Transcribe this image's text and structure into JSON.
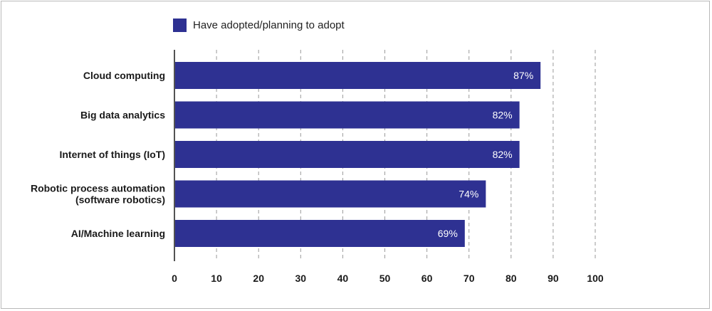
{
  "chart_data": {
    "type": "bar",
    "orientation": "horizontal",
    "categories": [
      "Cloud computing",
      "Big data analytics",
      "Internet of things (IoT)",
      "Robotic process automation\n(software robotics)",
      "AI/Machine learning"
    ],
    "series": [
      {
        "name": "Have adopted/planning to adopt",
        "values": [
          87,
          82,
          82,
          74,
          69
        ]
      }
    ],
    "data_labels": [
      "87%",
      "82%",
      "82%",
      "74%",
      "69%"
    ],
    "xlim": [
      0,
      100
    ],
    "xticks": [
      0,
      10,
      20,
      30,
      40,
      50,
      60,
      70,
      80,
      90,
      100
    ],
    "grid": "vertical dashed",
    "legend_position": "top-left",
    "bar_color": "#2e3192",
    "label_color": "#ffffff"
  }
}
